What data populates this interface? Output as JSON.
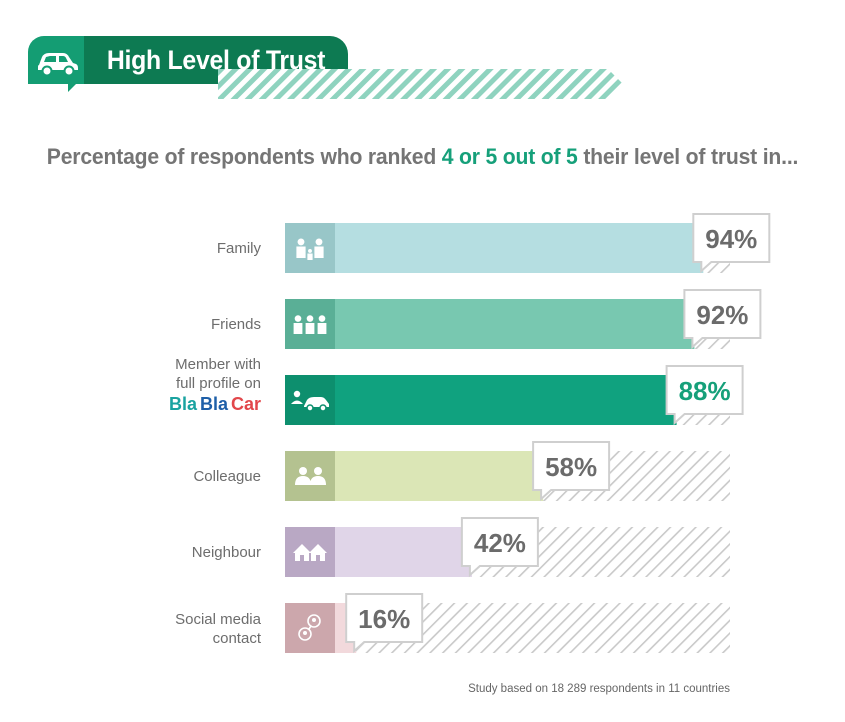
{
  "header": {
    "title": "High Level of Trust",
    "icon": "car-icon"
  },
  "subtitle": {
    "pre": "Percentage of respondents who ranked ",
    "highlight": "4 or 5 out of 5",
    "post": " their level of trust in..."
  },
  "footnote": "Study based on 18 289 respondents in 11 countries",
  "brand": {
    "part1": "Bla",
    "part2": "Bla",
    "part3": "Car",
    "colors": [
      "#1aa3a0",
      "#1e5fa8",
      "#e2474b"
    ]
  },
  "chart_data": {
    "type": "bar",
    "orientation": "horizontal",
    "xlim": [
      0,
      100
    ],
    "value_suffix": "%",
    "categories": [
      {
        "label_lines": [
          "Family"
        ],
        "value": 94,
        "value_label": "94%",
        "icon": "family-icon",
        "color": "#b5dee1",
        "icon_color": "#98c6c8",
        "label_color": "#757575"
      },
      {
        "label_lines": [
          "Friends"
        ],
        "value": 92,
        "value_label": "92%",
        "icon": "friends-icon",
        "color": "#78c8b0",
        "icon_color": "#5aaf96",
        "label_color": "#757575"
      },
      {
        "label_lines": [
          "Member with",
          "full profile on"
        ],
        "value": 88,
        "value_label": "88%",
        "icon": "member-car-icon",
        "color": "#10a27f",
        "icon_color": "#0d8f6e",
        "label_color": "#16a07a",
        "brand": true
      },
      {
        "label_lines": [
          "Colleague"
        ],
        "value": 58,
        "value_label": "58%",
        "icon": "colleague-icon",
        "color": "#dbe6b6",
        "icon_color": "#b4c290",
        "label_color": "#757575"
      },
      {
        "label_lines": [
          "Neighbour"
        ],
        "value": 42,
        "value_label": "42%",
        "icon": "neighbour-house-icon",
        "color": "#e0d5e8",
        "icon_color": "#b9a8c4",
        "label_color": "#757575"
      },
      {
        "label_lines": [
          "Social media",
          "contact"
        ],
        "value": 16,
        "value_label": "16%",
        "icon": "social-media-icon",
        "color": "#f2d9dc",
        "icon_color": "#cca7ac",
        "label_color": "#757575"
      }
    ]
  }
}
